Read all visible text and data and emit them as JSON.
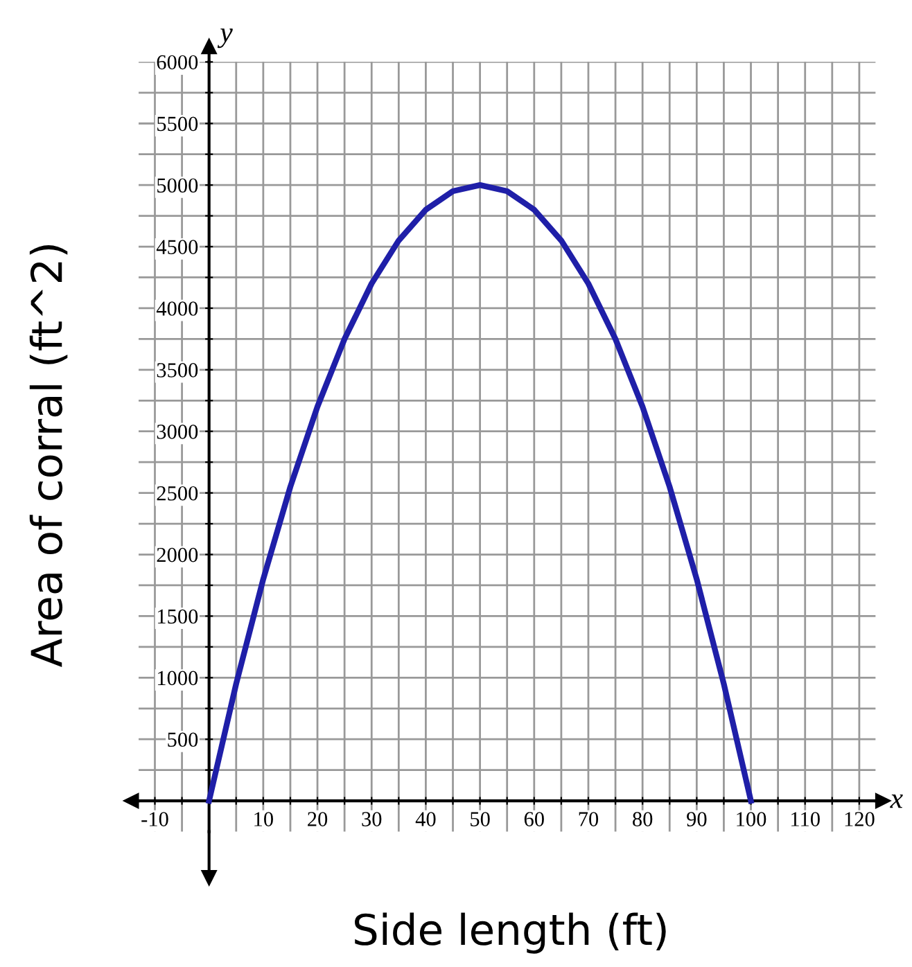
{
  "chart_data": {
    "type": "line",
    "xlabel": "Side length (ft)",
    "ylabel": "Area of corral (ft^2)",
    "annotations": [
      "x",
      "y"
    ],
    "x": [
      0,
      5,
      10,
      15,
      20,
      25,
      30,
      35,
      40,
      45,
      50,
      55,
      60,
      65,
      70,
      75,
      80,
      85,
      90,
      95,
      100
    ],
    "series": [
      {
        "color": "#1f1fa8",
        "values": [
          0,
          950,
          1800,
          2550,
          3200,
          3750,
          4200,
          4550,
          4800,
          4950,
          5000,
          4950,
          4800,
          4550,
          4200,
          3750,
          3200,
          2550,
          1800,
          950,
          0
        ]
      }
    ],
    "xlim": [
      -13,
      123
    ],
    "ylim": [
      -250,
      6000
    ],
    "xticks": [
      -10,
      {
        "value": -5,
        "label": null
      },
      {
        "value": 0,
        "label": null
      },
      {
        "value": 5,
        "label": null
      },
      10,
      {
        "value": 15,
        "label": null
      },
      20,
      {
        "value": 25,
        "label": null
      },
      30,
      {
        "value": 35,
        "label": null
      },
      40,
      {
        "value": 45,
        "label": null
      },
      50,
      {
        "value": 55,
        "label": null
      },
      60,
      {
        "value": 65,
        "label": null
      },
      70,
      {
        "value": 75,
        "label": null
      },
      80,
      {
        "value": 85,
        "label": null
      },
      90,
      {
        "value": 95,
        "label": null
      },
      100,
      {
        "value": 105,
        "label": null
      },
      110,
      {
        "value": 115,
        "label": null
      },
      120
    ],
    "yticks": [
      {
        "value": 250,
        "label": null
      },
      500,
      {
        "value": 750,
        "label": null
      },
      1000,
      {
        "value": 1250,
        "label": null
      },
      1500,
      {
        "value": 1750,
        "label": null
      },
      2000,
      {
        "value": 2250,
        "label": null
      },
      2500,
      {
        "value": 2750,
        "label": null
      },
      3000,
      {
        "value": 3250,
        "label": null
      },
      3500,
      {
        "value": 3750,
        "label": null
      },
      4000,
      {
        "value": 4250,
        "label": null
      },
      4500,
      {
        "value": 4750,
        "label": null
      },
      5000,
      {
        "value": 5250,
        "label": null
      },
      5500,
      {
        "value": 5750,
        "label": null
      },
      6000
    ],
    "grid": true,
    "marker": "none",
    "line_style": "solid",
    "legend": false
  }
}
